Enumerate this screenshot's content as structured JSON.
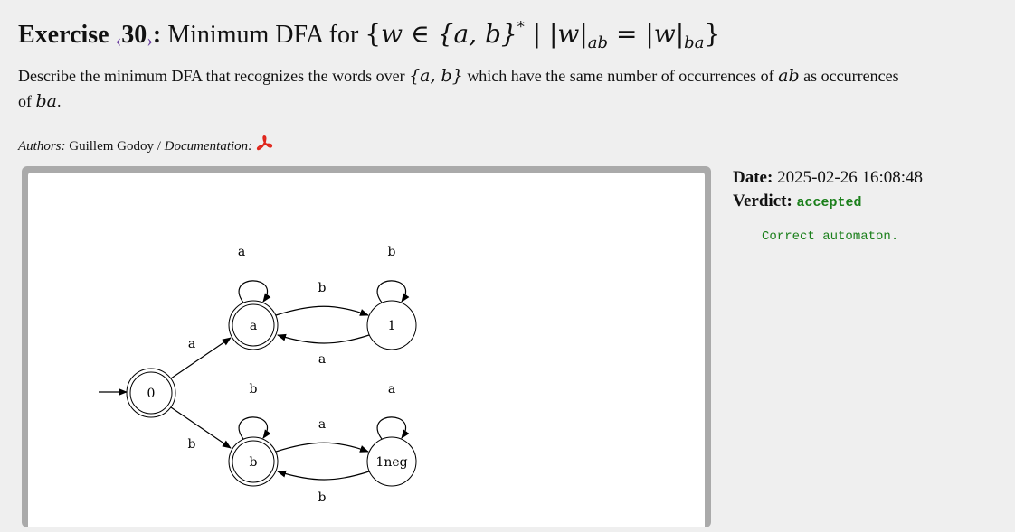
{
  "exercise": {
    "label": "Exercise",
    "number": "30",
    "prev_arrow": "‹",
    "next_arrow": "›",
    "separator": ":",
    "title_text": "Minimum DFA for",
    "title_math": {
      "open": "{",
      "w": "w",
      "in": "∈",
      "alphabet": "{a, b}",
      "star": "*",
      "bar": "|",
      "abs_w1": "|w|",
      "sub1": "ab",
      "eq": "=",
      "abs_w2": "|w|",
      "sub2": "ba",
      "close": "}"
    }
  },
  "description": {
    "part1": "Describe the minimum DFA that recognizes the words over",
    "alphabet": "{a, b}",
    "part2": "which have the same number of occurrences of",
    "ab": "ab",
    "part3": "as occurrences of",
    "ba": "ba",
    "end": "."
  },
  "authors": {
    "label": "Authors:",
    "name": "Guillem Godoy",
    "slash": "/",
    "doc_label": "Documentation:",
    "pdf_icon": "pdf-icon"
  },
  "submission": {
    "date_label": "Date:",
    "date": "2025-02-26 16:08:48",
    "verdict_label": "Verdict:",
    "verdict": "accepted",
    "message": "Correct automaton."
  },
  "automaton": {
    "states": [
      "0",
      "a",
      "1",
      "b",
      "1neg"
    ],
    "accepting": [
      "0",
      "a",
      "b"
    ],
    "initial": "0",
    "transitions": [
      {
        "from": "0",
        "to": "a",
        "label": "a"
      },
      {
        "from": "0",
        "to": "b",
        "label": "b"
      },
      {
        "from": "a",
        "to": "a",
        "label": "a"
      },
      {
        "from": "a",
        "to": "1",
        "label": "b"
      },
      {
        "from": "1",
        "to": "1",
        "label": "b"
      },
      {
        "from": "1",
        "to": "a",
        "label": "a"
      },
      {
        "from": "b",
        "to": "b",
        "label": "b"
      },
      {
        "from": "b",
        "to": "1neg",
        "label": "a"
      },
      {
        "from": "1neg",
        "to": "1neg",
        "label": "a"
      },
      {
        "from": "1neg",
        "to": "b",
        "label": "b"
      }
    ]
  },
  "colors": {
    "background": "#efefef",
    "panel_border": "#aaaaaa",
    "nav_arrow": "#6b3fa0",
    "accepted_green": "#1a7f1a",
    "pdf_red": "#e0251b"
  }
}
